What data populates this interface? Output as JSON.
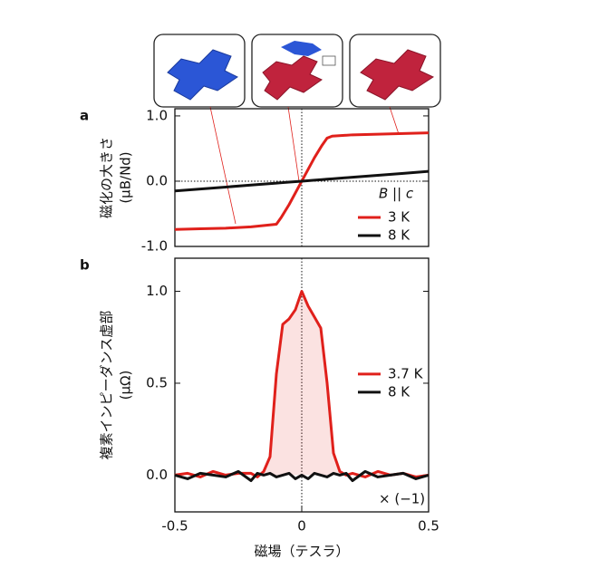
{
  "chart_data": [
    {
      "type": "line",
      "panel_label": "a",
      "y_label": "磁化の大きさ",
      "y_label_unit": "(μB/Nd)",
      "annotation": "B || c",
      "legend": "lower right",
      "x": [
        -0.5,
        -0.4,
        -0.3,
        -0.2,
        -0.1,
        -0.08,
        -0.05,
        0,
        0.05,
        0.08,
        0.1,
        0.12,
        0.2,
        0.3,
        0.4,
        0.5
      ],
      "series": [
        {
          "name": "3 K",
          "color": "#e0201b",
          "values": [
            -0.74,
            -0.73,
            -0.72,
            -0.7,
            -0.66,
            -0.55,
            -0.36,
            0,
            0.36,
            0.55,
            0.66,
            0.69,
            0.71,
            0.72,
            0.73,
            0.74
          ]
        },
        {
          "name": "8 K",
          "color": "#111111",
          "values": [
            -0.15,
            -0.12,
            -0.09,
            -0.06,
            -0.03,
            -0.024,
            -0.015,
            0,
            0.015,
            0.024,
            0.03,
            0.036,
            0.06,
            0.09,
            0.12,
            0.15
          ]
        }
      ],
      "xlim": [
        -0.5,
        0.5
      ],
      "ylim": [
        -1.0,
        1.11
      ],
      "yticks": [
        {
          "value": -1,
          "label": "-1.0"
        },
        {
          "value": 0,
          "label": "0.0"
        },
        {
          "value": 1,
          "label": "1.0"
        }
      ]
    },
    {
      "type": "line",
      "panel_label": "b",
      "y_label": "複素インピーダンス虚部",
      "y_label_unit": "(μΩ)",
      "x_label": "磁場（テスラ）",
      "annotation": "× (−1)",
      "legend": "center right",
      "x": [
        -0.5,
        -0.45,
        -0.4,
        -0.35,
        -0.3,
        -0.25,
        -0.2,
        -0.175,
        -0.15,
        -0.125,
        -0.1,
        -0.075,
        -0.05,
        -0.025,
        0,
        0.025,
        0.05,
        0.075,
        0.1,
        0.125,
        0.15,
        0.175,
        0.2,
        0.25,
        0.3,
        0.35,
        0.4,
        0.45,
        0.5
      ],
      "series": [
        {
          "name": "3.7 K",
          "color": "#e0201b",
          "values": [
            0.0,
            0.01,
            -0.01,
            0.02,
            0.0,
            0.01,
            0.01,
            -0.01,
            0.02,
            0.1,
            0.55,
            0.82,
            0.85,
            0.9,
            1.0,
            0.92,
            0.86,
            0.8,
            0.5,
            0.12,
            0.02,
            0.0,
            0.01,
            -0.01,
            0.02,
            0.0,
            0.01,
            -0.01,
            0.0
          ]
        },
        {
          "name": "8 K",
          "color": "#111111",
          "values": [
            0.0,
            -0.02,
            0.01,
            0.0,
            -0.01,
            0.02,
            -0.03,
            0.01,
            0.0,
            0.01,
            -0.01,
            0.0,
            0.01,
            -0.02,
            0.0,
            -0.02,
            0.01,
            0.0,
            -0.01,
            0.01,
            0.0,
            0.01,
            -0.03,
            0.02,
            -0.01,
            0.0,
            0.01,
            -0.02,
            0.0
          ]
        }
      ],
      "xlim": [
        -0.5,
        0.5
      ],
      "ylim": [
        -0.2,
        1.18
      ],
      "xticks": [
        -0.5,
        0,
        0.5
      ],
      "yticks": [
        {
          "value": 0,
          "label": "0.0"
        },
        0.5,
        {
          "value": 1,
          "label": "1.0"
        }
      ]
    }
  ]
}
